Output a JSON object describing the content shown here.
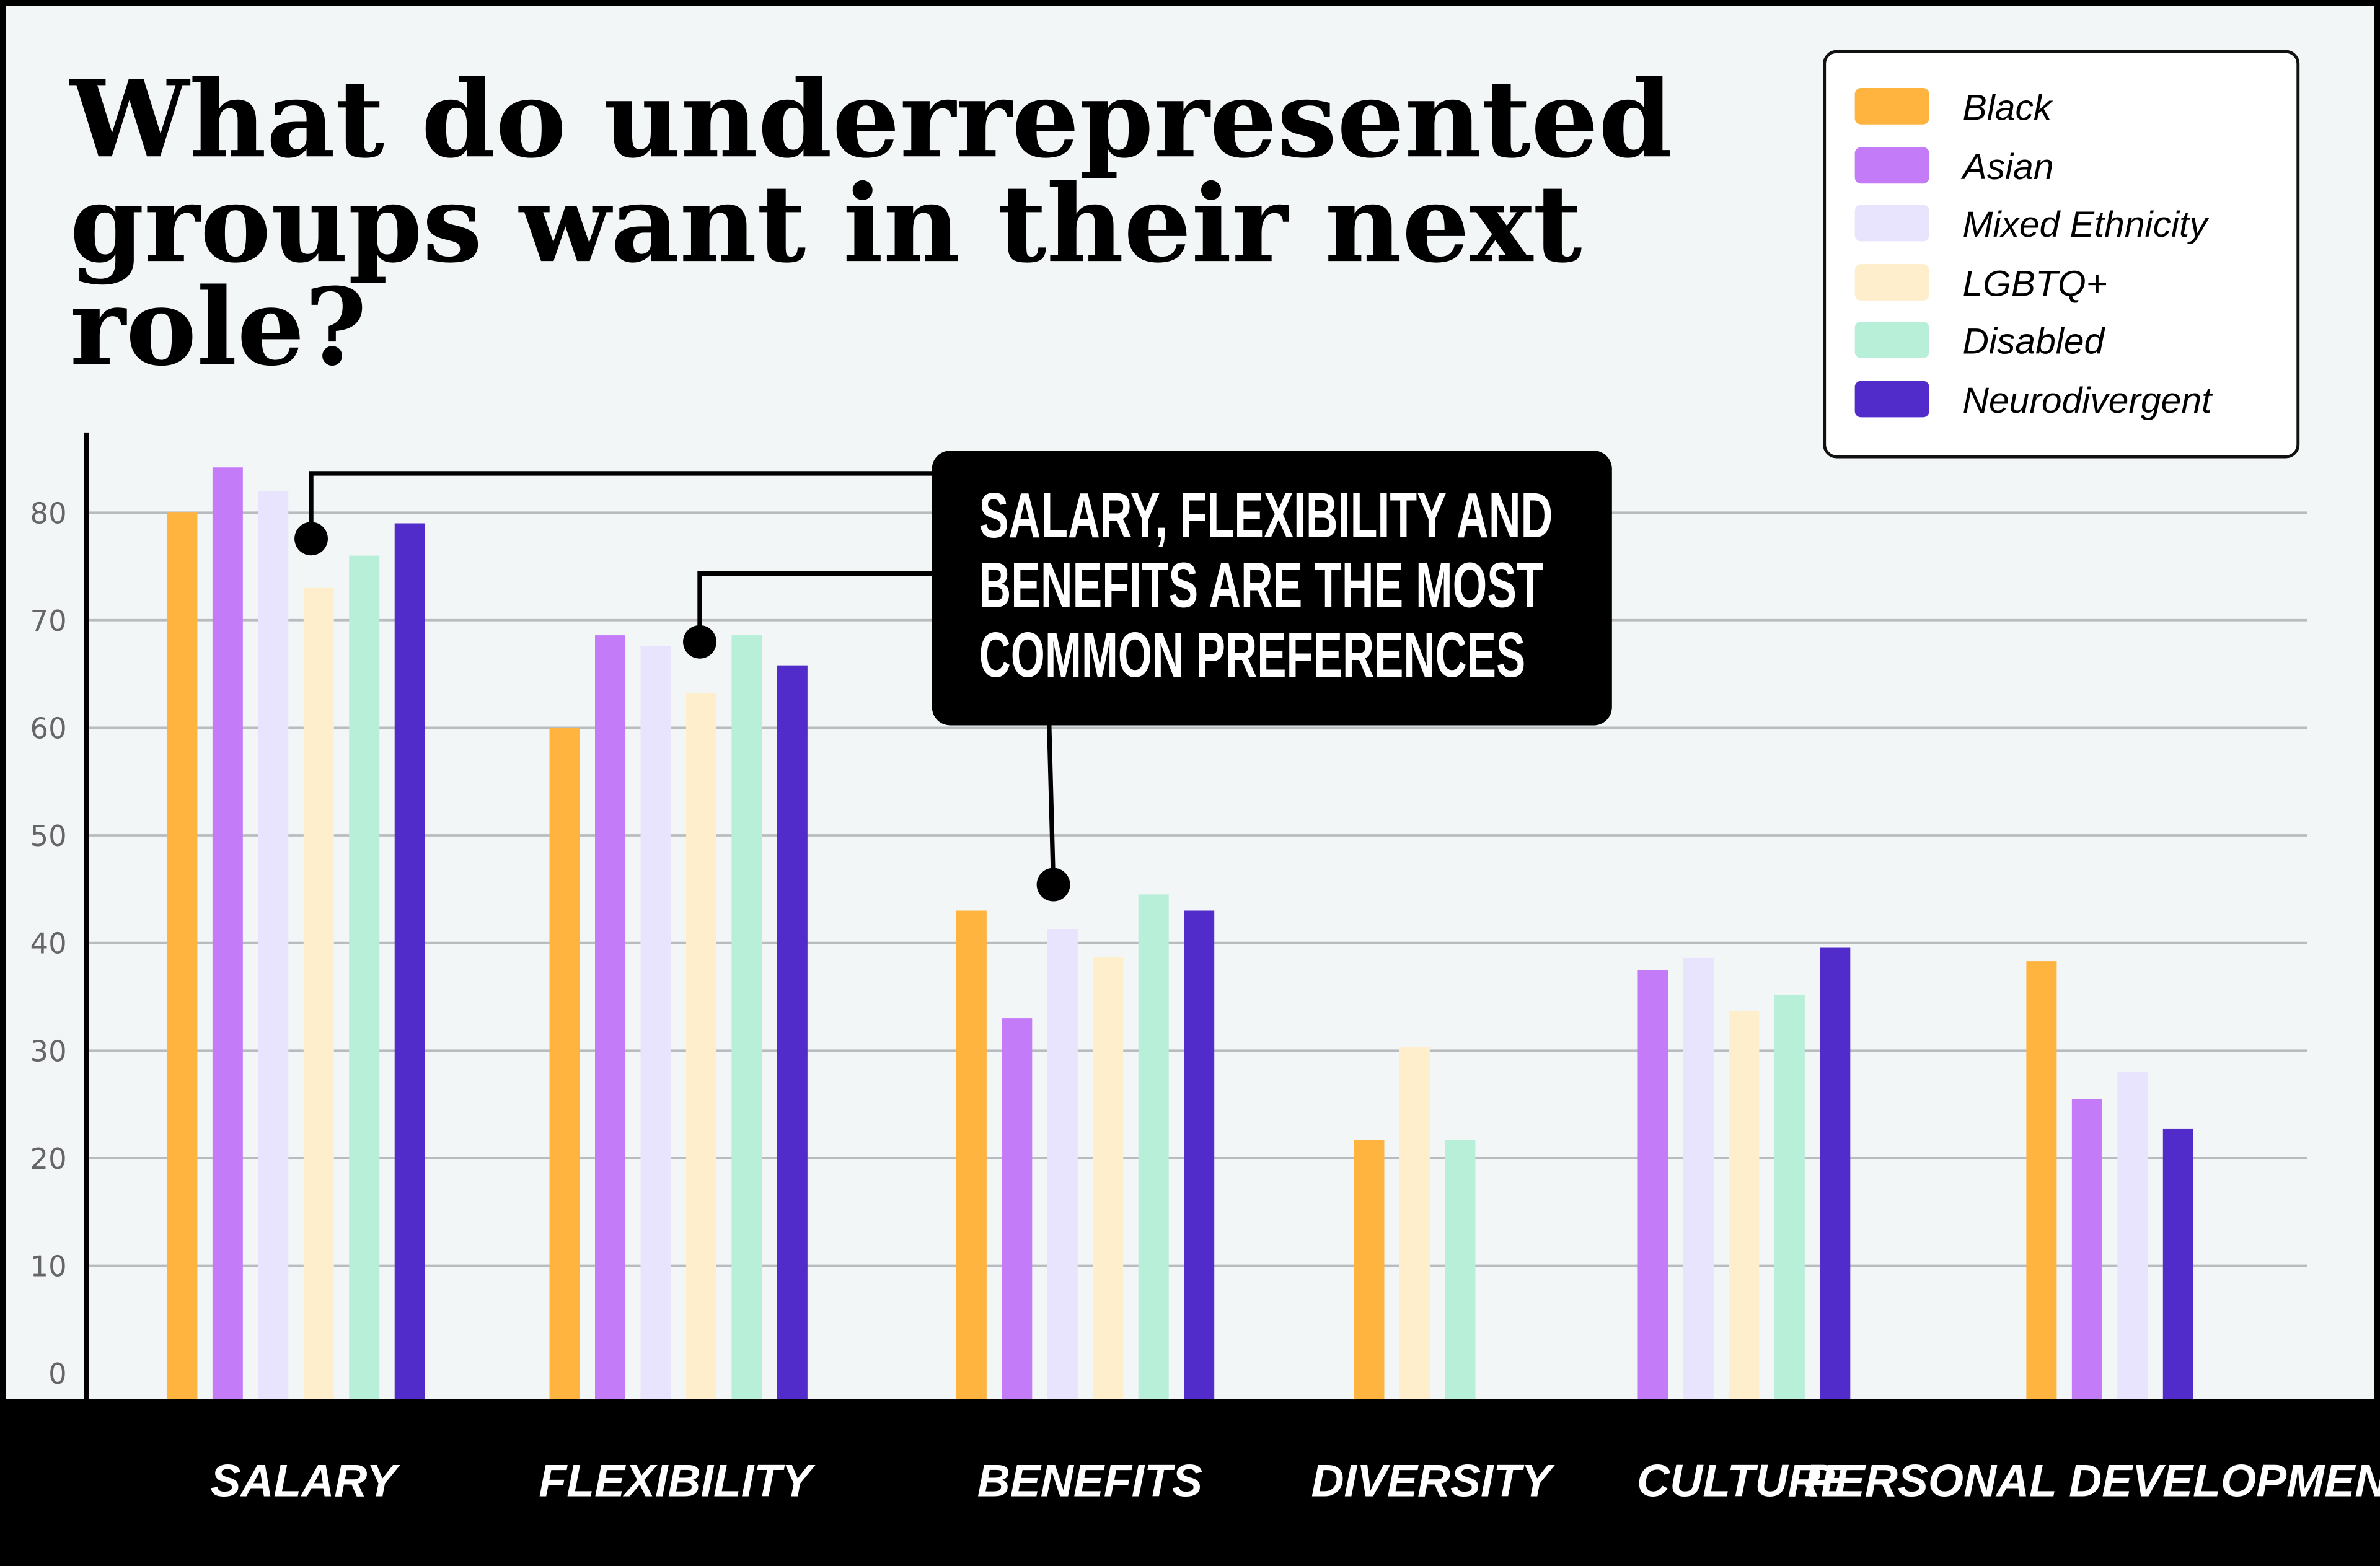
{
  "chart_data": {
    "type": "bar",
    "title": "What do underrepresented groups want in their next role?",
    "title_lines": [
      "What do underrepresented",
      "groups want in their next",
      "role?"
    ],
    "categories": [
      "SALARY",
      "FLEXIBILITY",
      "BENEFITS",
      "DIVERSITY",
      "CULTURE",
      "PERSONAL DEVELOPMENT"
    ],
    "series": [
      {
        "name": "Black",
        "color": "#ffb43f",
        "values": [
          80,
          60,
          43,
          21.7,
          null,
          38.3
        ]
      },
      {
        "name": "Asian",
        "color": "#c47bf8",
        "values": [
          84.2,
          68.6,
          33,
          null,
          37.5,
          25.5
        ]
      },
      {
        "name": "Mixed Ethnicity",
        "color": "#e9e4fe",
        "values": [
          82,
          67.6,
          41.3,
          null,
          38.6,
          28
        ]
      },
      {
        "name": "LGBTQ+",
        "color": "#ffeecc",
        "values": [
          73,
          63.2,
          38.7,
          30.3,
          33.7,
          null
        ]
      },
      {
        "name": "Disabled",
        "color": "#b7efd8",
        "values": [
          76,
          68.6,
          44.5,
          21.7,
          35.2,
          null
        ]
      },
      {
        "name": "Neurodivergent",
        "color": "#522ccb",
        "values": [
          79,
          65.8,
          43,
          null,
          39.6,
          22.7
        ]
      }
    ],
    "yticks": [
      "0",
      "10",
      "20",
      "30",
      "40",
      "50",
      "60",
      "70",
      "80"
    ],
    "ylim": [
      0,
      85
    ],
    "xlabel": "",
    "ylabel": "",
    "grid": true,
    "legend": "top-right",
    "annotation": {
      "lines": [
        "SALARY, FLEXIBILITY AND",
        "BENEFITS ARE THE MOST",
        "COMMON PREFERENCES"
      ],
      "points_to": [
        "SALARY",
        "FLEXIBILITY",
        "BENEFITS"
      ]
    }
  }
}
